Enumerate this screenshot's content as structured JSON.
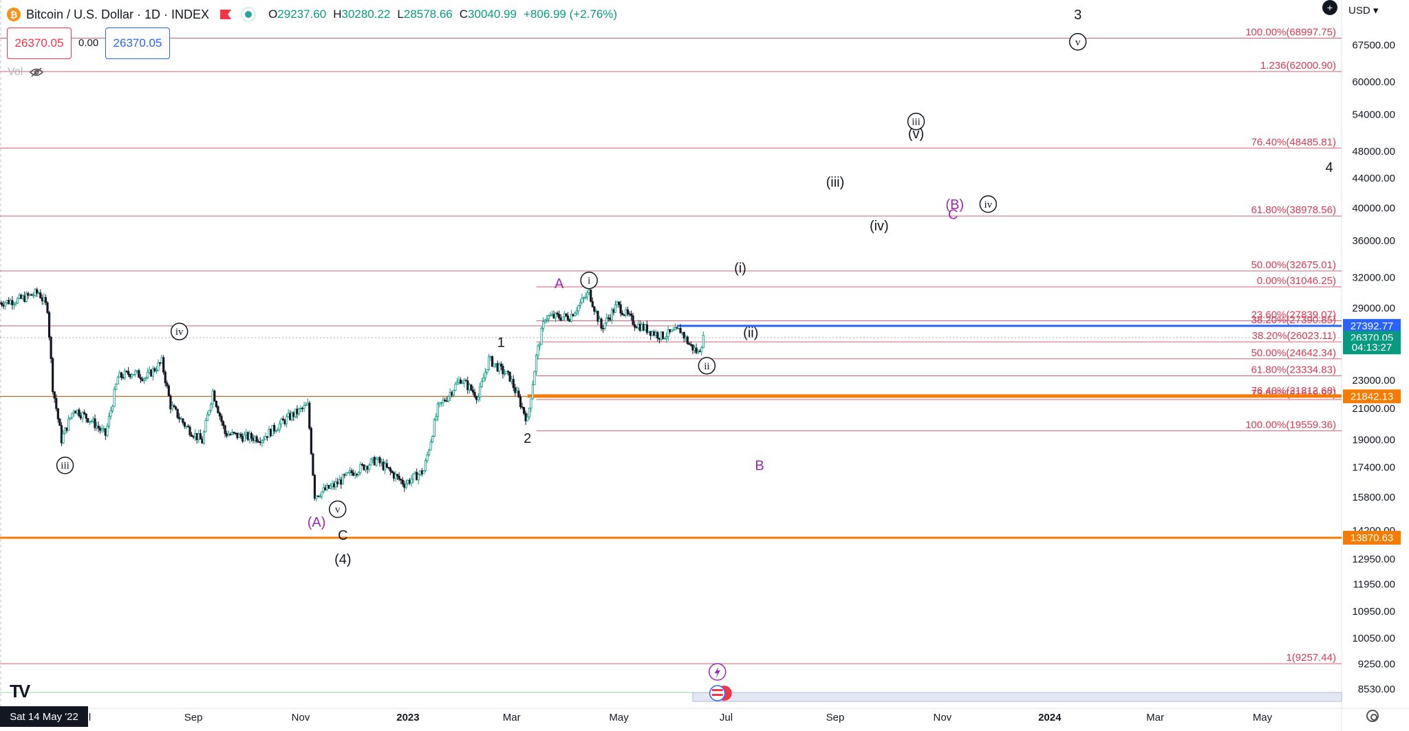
{
  "header": {
    "symbol_title": "Bitcoin / U.S. Dollar · 1D · INDEX",
    "coin_icon": "bitcoin-icon",
    "ohlc": [
      {
        "key": "O",
        "value": "29237.60"
      },
      {
        "key": "H",
        "value": "30280.22"
      },
      {
        "key": "L",
        "value": "28578.66"
      },
      {
        "key": "C",
        "value": "30040.99"
      }
    ],
    "change": "+806.99 (+2.76%)",
    "sell_price": "26370.05",
    "spread": "0.00",
    "buy_price": "26370.05",
    "volume_label": "Vol",
    "currency": "USD"
  },
  "date_cursor": "Sat 14 May '22",
  "tv_logo": "TV",
  "colors": {
    "up": "#089981",
    "down": "#131722",
    "fib": "#d63a55",
    "purple": "#9c27b0",
    "orange": "#f57c00",
    "blue": "#2962ff"
  },
  "chart_data": {
    "type": "candlestick",
    "y_scale": "log",
    "ylim": [
      8200,
      78000
    ],
    "x_range": [
      "2022-05-14",
      "2024-06-15"
    ],
    "x_ticks": [
      {
        "date": "2022-07-01",
        "label": "Jul"
      },
      {
        "date": "2022-09-01",
        "label": "Sep"
      },
      {
        "date": "2022-11-01",
        "label": "Nov"
      },
      {
        "date": "2023-01-01",
        "label": "2023"
      },
      {
        "date": "2023-03-01",
        "label": "Mar"
      },
      {
        "date": "2023-05-01",
        "label": "May"
      },
      {
        "date": "2023-07-01",
        "label": "Jul"
      },
      {
        "date": "2023-09-01",
        "label": "Sep"
      },
      {
        "date": "2023-11-01",
        "label": "Nov"
      },
      {
        "date": "2024-01-01",
        "label": "2024"
      },
      {
        "date": "2024-03-01",
        "label": "Mar"
      },
      {
        "date": "2024-05-01",
        "label": "May"
      }
    ],
    "y_ticks": [
      "67500.00",
      "60000.00",
      "54000.00",
      "48000.00",
      "44000.00",
      "40000.00",
      "36000.00",
      "32000.00",
      "29000.00",
      "23000.00",
      "21000.00",
      "19000.00",
      "17400.00",
      "15800.00",
      "14200.00",
      "12950.00",
      "11950.00",
      "10950.00",
      "10050.00",
      "9250.00",
      "8530.00"
    ],
    "price_path": [
      [
        "2022-05-14",
        29500
      ],
      [
        "2022-05-25",
        29800
      ],
      [
        "2022-06-05",
        30500
      ],
      [
        "2022-06-10",
        29000
      ],
      [
        "2022-06-13",
        22500
      ],
      [
        "2022-06-18",
        19000
      ],
      [
        "2022-06-25",
        21000
      ],
      [
        "2022-07-05",
        20200
      ],
      [
        "2022-07-13",
        19300
      ],
      [
        "2022-07-20",
        23200
      ],
      [
        "2022-07-28",
        23600
      ],
      [
        "2022-08-05",
        23200
      ],
      [
        "2022-08-14",
        24400
      ],
      [
        "2022-08-19",
        21200
      ],
      [
        "2022-08-28",
        19800
      ],
      [
        "2022-09-06",
        18900
      ],
      [
        "2022-09-12",
        22200
      ],
      [
        "2022-09-19",
        19400
      ],
      [
        "2022-09-28",
        19200
      ],
      [
        "2022-10-10",
        19100
      ],
      [
        "2022-10-25",
        20400
      ],
      [
        "2022-11-05",
        21200
      ],
      [
        "2022-11-09",
        15900
      ],
      [
        "2022-11-20",
        16400
      ],
      [
        "2022-11-30",
        17100
      ],
      [
        "2022-12-14",
        17800
      ],
      [
        "2022-12-30",
        16500
      ],
      [
        "2023-01-10",
        17200
      ],
      [
        "2023-01-18",
        21000
      ],
      [
        "2023-01-31",
        23100
      ],
      [
        "2023-02-10",
        21800
      ],
      [
        "2023-02-16",
        24600
      ],
      [
        "2023-02-28",
        23200
      ],
      [
        "2023-03-10",
        20200
      ],
      [
        "2023-03-15",
        24800
      ],
      [
        "2023-03-20",
        28200
      ],
      [
        "2023-04-03",
        28200
      ],
      [
        "2023-04-14",
        30500
      ],
      [
        "2023-04-21",
        27200
      ],
      [
        "2023-04-30",
        29300
      ],
      [
        "2023-05-10",
        27600
      ],
      [
        "2023-05-25",
        26500
      ],
      [
        "2023-06-05",
        27000
      ],
      [
        "2023-06-10",
        25800
      ],
      [
        "2023-06-15",
        25100
      ],
      [
        "2023-06-18",
        26300
      ]
    ],
    "horizontal_levels": [
      {
        "label": "100.00%(68997.75)",
        "price": 68997.75,
        "kind": "fib"
      },
      {
        "label": "1.236(62000.90)",
        "price": 62000.9,
        "kind": "fib"
      },
      {
        "label": "76.40%(48485.81)",
        "price": 48485.81,
        "kind": "fib"
      },
      {
        "label": "61.80%(38978.56)",
        "price": 38978.56,
        "kind": "fib"
      },
      {
        "label": "50.00%(32675.01)",
        "price": 32675.01,
        "kind": "fib"
      },
      {
        "label": "0.00%(31046.25)",
        "price": 31046.25,
        "kind": "fib_short"
      },
      {
        "label": "23.60%(27839.07)",
        "price": 27839.07,
        "kind": "fib_short"
      },
      {
        "label": "38.20%(27390.85)",
        "price": 27390.85,
        "kind": "fib"
      },
      {
        "label": "38.20%(26023.11)",
        "price": 26023.11,
        "kind": "fib_short"
      },
      {
        "label": "50.00%(24642.34)",
        "price": 24642.34,
        "kind": "fib_short"
      },
      {
        "label": "61.80%(23334.83)",
        "price": 23334.83,
        "kind": "fib_short"
      },
      {
        "label": "76.40%(21812.68)",
        "price": 21812.68,
        "kind": "fib_short"
      },
      {
        "label": "78.60%(21619.97)",
        "price": 21619.97,
        "kind": "fib_short"
      },
      {
        "label": "100.00%(19559.36)",
        "price": 19559.36,
        "kind": "fib_short"
      },
      {
        "label": "1(9257.44)",
        "price": 9257.44,
        "kind": "fib"
      }
    ],
    "price_badges": [
      {
        "label": "27392.77",
        "price": 27392.77,
        "color": "#2962ff"
      },
      {
        "label": "26370.05",
        "price": 26370.05,
        "color": "#089981"
      },
      {
        "label": "04:13:27",
        "price": 25560,
        "color": "#089981"
      },
      {
        "label": "21842.13",
        "price": 21842.13,
        "color": "#f57c00"
      },
      {
        "label": "13870.63",
        "price": 13870.63,
        "color": "#f57c00"
      }
    ],
    "wave_labels": [
      {
        "text": "3",
        "date": "2024-01-17",
        "price": 74500,
        "style": "plain",
        "color": "#131722"
      },
      {
        "text": "v",
        "date": "2024-01-17",
        "price": 68200,
        "style": "circle",
        "color": "#131722"
      },
      {
        "text": "iii",
        "date": "2023-10-17",
        "price": 52800,
        "style": "circle",
        "color": "#131722"
      },
      {
        "text": "(v)",
        "date": "2023-10-17",
        "price": 50800,
        "style": "plain",
        "color": "#131722"
      },
      {
        "text": "4",
        "date": "2024-06-08",
        "price": 45600,
        "style": "plain",
        "color": "#131722"
      },
      {
        "text": "(iii)",
        "date": "2023-09-01",
        "price": 43500,
        "style": "plain",
        "color": "#131722"
      },
      {
        "text": "(B)",
        "date": "2023-11-08",
        "price": 40500,
        "style": "plain",
        "color": "#9c27b0"
      },
      {
        "text": "C",
        "date": "2023-11-07",
        "price": 39200,
        "style": "plain",
        "color": "#9c27b0"
      },
      {
        "text": "iv",
        "date": "2023-11-27",
        "price": 40500,
        "style": "circle",
        "color": "#131722"
      },
      {
        "text": "(iv)",
        "date": "2023-09-26",
        "price": 37800,
        "style": "plain",
        "color": "#131722"
      },
      {
        "text": "(i)",
        "date": "2023-07-09",
        "price": 33000,
        "style": "plain",
        "color": "#131722"
      },
      {
        "text": "A",
        "date": "2023-03-28",
        "price": 31400,
        "style": "plain",
        "color": "#9c27b0"
      },
      {
        "text": "i",
        "date": "2023-04-14",
        "price": 31700,
        "style": "circle",
        "color": "#131722"
      },
      {
        "text": "iv",
        "date": "2022-08-24",
        "price": 26900,
        "style": "circle",
        "color": "#131722"
      },
      {
        "text": "(ii)",
        "date": "2023-07-15",
        "price": 26800,
        "style": "plain",
        "color": "#131722"
      },
      {
        "text": "1",
        "date": "2023-02-23",
        "price": 26000,
        "style": "plain",
        "color": "#131722"
      },
      {
        "text": "ii",
        "date": "2023-06-20",
        "price": 24100,
        "style": "circle",
        "color": "#131722"
      },
      {
        "text": "2",
        "date": "2023-03-10",
        "price": 19100,
        "style": "plain",
        "color": "#131722"
      },
      {
        "text": "iii",
        "date": "2022-06-20",
        "price": 17500,
        "style": "circle",
        "color": "#131722"
      },
      {
        "text": "B",
        "date": "2023-07-20",
        "price": 17500,
        "style": "plain",
        "color": "#9c27b0"
      },
      {
        "text": "v",
        "date": "2022-11-22",
        "price": 15200,
        "style": "circle",
        "color": "#131722"
      },
      {
        "text": "(A)",
        "date": "2022-11-10",
        "price": 14600,
        "style": "plain",
        "color": "#9c27b0"
      },
      {
        "text": "C",
        "date": "2022-11-25",
        "price": 14000,
        "style": "plain",
        "color": "#131722"
      },
      {
        "text": "(4)",
        "date": "2022-11-25",
        "price": 12950,
        "style": "plain",
        "color": "#131722"
      }
    ]
  }
}
